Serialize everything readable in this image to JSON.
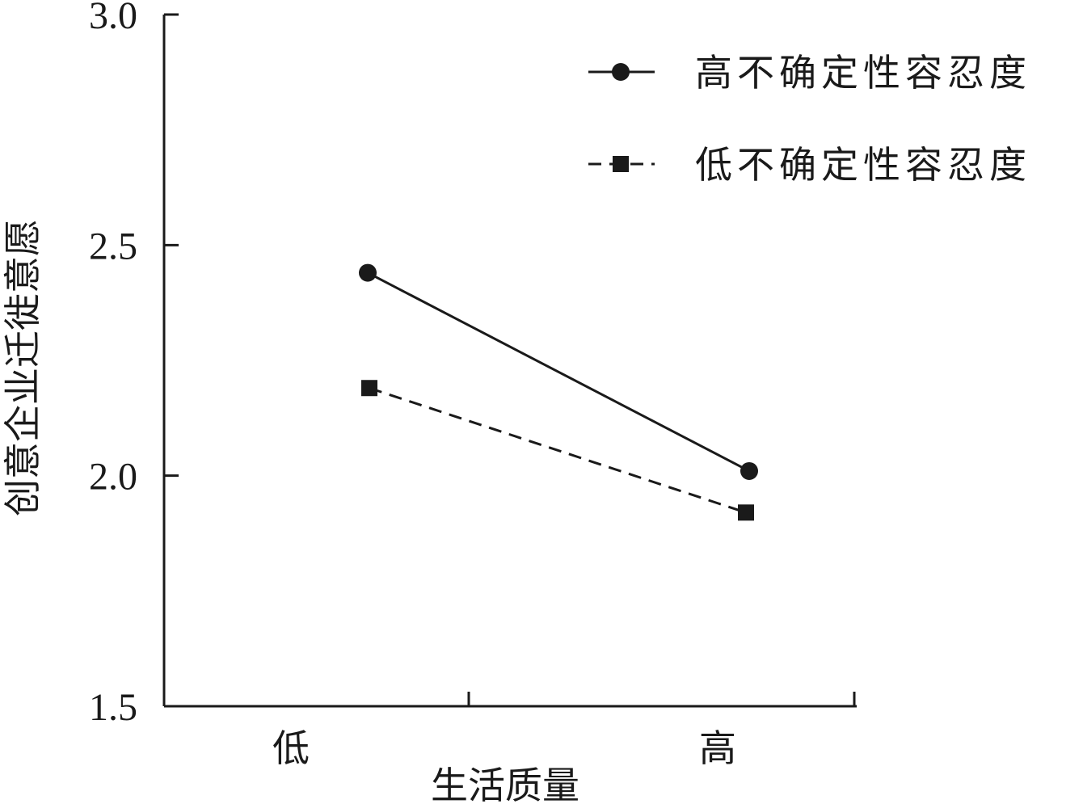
{
  "chart_data": {
    "type": "line",
    "title": "",
    "xlabel": "生活质量",
    "ylabel": "创意企业迁徙意愿",
    "categories": [
      "低",
      "高"
    ],
    "ylim": [
      1.5,
      3.0
    ],
    "yticks": [
      "1.5",
      "2.0",
      "2.5",
      "3.0"
    ],
    "grid": false,
    "legend_position": "top-right",
    "series": [
      {
        "name": "高不确定性容忍度",
        "values": [
          2.44,
          2.01
        ],
        "line_style": "solid",
        "marker": "circle",
        "color": "#1a1a1a"
      },
      {
        "name": "低不确定性容忍度",
        "values": [
          2.19,
          1.92
        ],
        "line_style": "dashed",
        "marker": "square",
        "color": "#1a1a1a"
      }
    ]
  }
}
